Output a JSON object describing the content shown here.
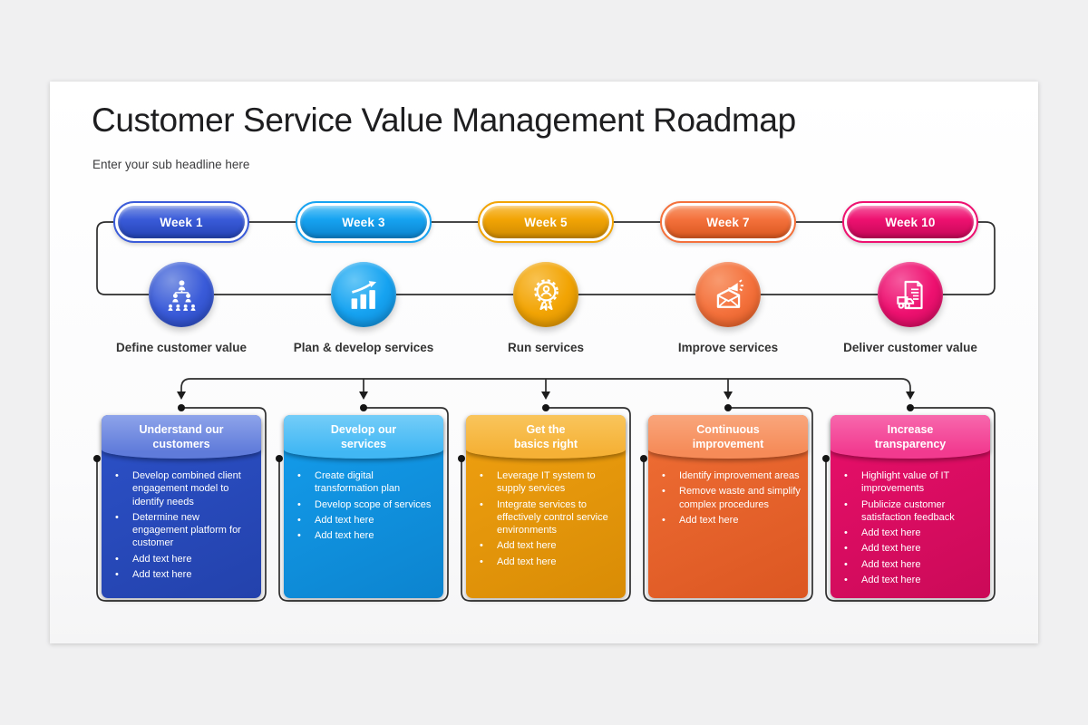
{
  "slide": {
    "title": "Customer Service Value Management Roadmap",
    "subtitle": "Enter your sub headline here"
  },
  "connector_color": "#2d2d2d",
  "stages": [
    {
      "week": "Week 1",
      "label": "Define customer value",
      "icon": "org-hierarchy-icon",
      "colors": {
        "main": "#3A5BD9",
        "dark": "#2443B4",
        "light": "#7E96E4",
        "header": "#5F7BDA",
        "headerLight": "#8EA4EA",
        "body": "#2C51C8",
        "bodyDark": "#2342AC"
      }
    },
    {
      "week": "Week 3",
      "label": "Plan & develop services",
      "icon": "growth-chart-icon",
      "colors": {
        "main": "#16A3F1",
        "dark": "#0C82CC",
        "light": "#66C7F7",
        "header": "#41B7F4",
        "headerLight": "#74CDF8",
        "body": "#149DEC",
        "bodyDark": "#0C84CF"
      }
    },
    {
      "week": "Week 5",
      "label": "Run services",
      "icon": "medal-icon",
      "colors": {
        "main": "#F2A404",
        "dark": "#CE8A02",
        "light": "#F8C251",
        "header": "#F5B136",
        "headerLight": "#F9C55C",
        "body": "#EFA011",
        "bodyDark": "#D98C05"
      }
    },
    {
      "week": "Week 7",
      "label": "Improve services",
      "icon": "announcement-mail-icon",
      "colors": {
        "main": "#F4713C",
        "dark": "#D9571F",
        "light": "#F89A6F",
        "header": "#F68B58",
        "headerLight": "#F9A67C",
        "body": "#EF6E35",
        "bodyDark": "#DC5722"
      }
    },
    {
      "week": "Week 10",
      "label": "Deliver customer value",
      "icon": "delivery-document-icon",
      "colors": {
        "main": "#EE1170",
        "dark": "#C40857",
        "light": "#F55A9F",
        "header": "#F23A8F",
        "headerLight": "#F768AD",
        "body": "#E80F6A",
        "bodyDark": "#CB0A58"
      }
    }
  ],
  "cards": [
    {
      "title": "Understand our\ncustomers",
      "bullets": [
        "Develop combined client engagement model to identify needs",
        "Determine new engagement platform for customer",
        "Add text here",
        "Add text here"
      ]
    },
    {
      "title": "Develop our\nservices",
      "bullets": [
        "Create digital transformation plan",
        "Develop scope of services",
        "Add text here",
        "Add text here"
      ]
    },
    {
      "title": "Get the\nbasics right",
      "bullets": [
        "Leverage IT system to supply services",
        "Integrate services to effectively control service environments",
        "Add text here",
        "Add text here"
      ]
    },
    {
      "title": "Continuous\nimprovement",
      "bullets": [
        "Identify improvement areas",
        "Remove waste and simplify complex procedures",
        "Add text here"
      ]
    },
    {
      "title": "Increase\ntransparency",
      "bullets": [
        "Highlight value of IT improvements",
        "Publicize customer satisfaction feedback",
        "Add text here",
        "Add text here",
        "Add text here",
        "Add text here"
      ]
    }
  ]
}
